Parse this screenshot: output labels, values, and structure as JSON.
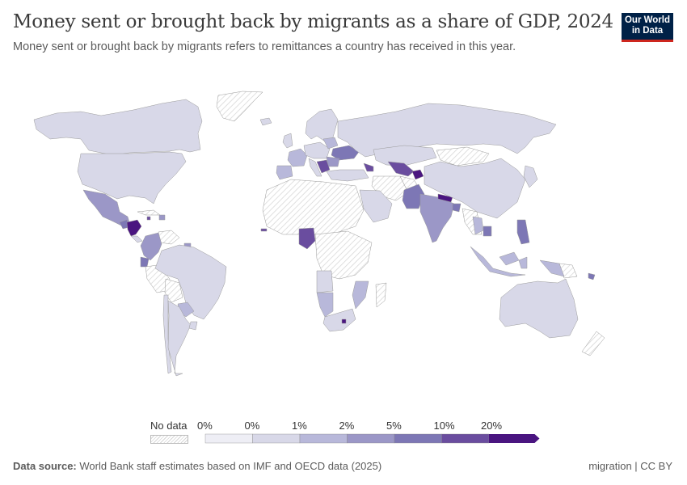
{
  "header": {
    "title": "Money sent or brought back by migrants as a share of GDP, 2024",
    "subtitle": "Money sent or brought back by migrants refers to remittances a country has received in this year.",
    "logo_line1": "Our World",
    "logo_line2": "in Data"
  },
  "legend": {
    "no_data_label": "No data",
    "bins": [
      {
        "label": "0%",
        "color": "#eeeef5"
      },
      {
        "label": "0%",
        "color": "#d8d8e8"
      },
      {
        "label": "1%",
        "color": "#b8b8da"
      },
      {
        "label": "2%",
        "color": "#9b97c7"
      },
      {
        "label": "5%",
        "color": "#7d77b5"
      },
      {
        "label": "10%",
        "color": "#6a4d9f"
      },
      {
        "label": "20%",
        "color": "#4a1580"
      }
    ]
  },
  "footer": {
    "source_label": "Data source:",
    "source_text": "World Bank staff estimates based on IMF and OECD data (2025)",
    "license": "migration | CC BY"
  },
  "colors": {
    "nodata_stroke": "#d6d6d6",
    "border": "#9a9a9a",
    "logo_bg": "#002147",
    "logo_accent": "#ce261e"
  }
}
